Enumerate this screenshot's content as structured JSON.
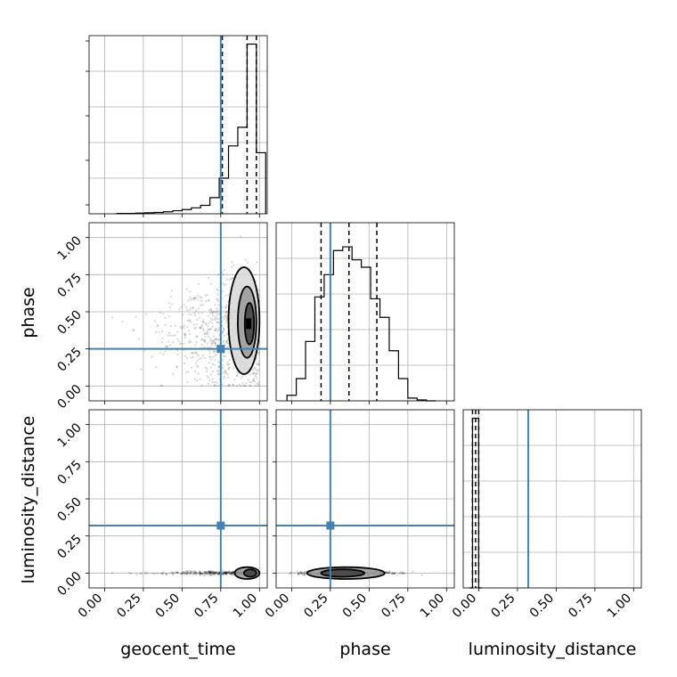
{
  "chart_data": {
    "type": "corner",
    "parameters": [
      "geocent_time",
      "phase",
      "luminosity_distance"
    ],
    "tick_labels": [
      "0.00",
      "0.25",
      "0.50",
      "0.75",
      "1.00"
    ],
    "injection": {
      "geocent_time": 0.75,
      "phase": 0.25,
      "luminosity_distance": 0.32
    },
    "truth_color": "#4682b4",
    "grid": true,
    "histograms": [
      {
        "parameter": "geocent_time",
        "xlim": [
          -0.1,
          1.05
        ],
        "bin_edges": [
          0.08,
          0.14,
          0.2,
          0.26,
          0.32,
          0.38,
          0.44,
          0.5,
          0.56,
          0.62,
          0.68,
          0.74,
          0.8,
          0.86,
          0.92,
          0.98,
          1.04
        ],
        "counts": [
          0.02,
          0.02,
          0.04,
          0.06,
          0.08,
          0.12,
          0.18,
          0.25,
          0.35,
          0.5,
          0.95,
          2.1,
          4.0,
          5.1,
          10.0,
          3.6
        ],
        "ylim": [
          0,
          10.5
        ],
        "quantiles": [
          0.76,
          0.92,
          0.98
        ]
      },
      {
        "parameter": "phase",
        "xlim": [
          -0.1,
          1.05
        ],
        "bin_edges": [
          -0.03,
          0.03,
          0.09,
          0.15,
          0.21,
          0.27,
          0.33,
          0.39,
          0.45,
          0.51,
          0.57,
          0.63,
          0.69,
          0.75,
          0.81,
          0.87,
          0.93
        ],
        "counts": [
          0.3,
          1.2,
          3.2,
          5.6,
          6.8,
          8.1,
          8.3,
          7.6,
          7.2,
          5.5,
          4.5,
          2.7,
          1.2,
          0.15,
          0.05,
          0.0
        ],
        "ylim": [
          0,
          9.6
        ],
        "quantiles": [
          0.19,
          0.37,
          0.55
        ]
      },
      {
        "parameter": "luminosity_distance",
        "xlim": [
          -0.1,
          1.05
        ],
        "bin_edges": [
          -0.06,
          -0.04,
          -0.02,
          0.0,
          0.02
        ],
        "counts": [
          0.0,
          10.0,
          10.0,
          0.0
        ],
        "ylim": [
          0,
          10.5
        ],
        "quantiles": [
          -0.04,
          -0.02,
          0.0
        ]
      }
    ],
    "scatter_panels": [
      {
        "x": "geocent_time",
        "y": "phase",
        "xlim": [
          -0.1,
          1.05
        ],
        "ylim": [
          -0.1,
          1.1
        ],
        "contour_levels": [
          {
            "cx": 0.935,
            "cy": 0.42,
            "rx": 0.03,
            "ry": 0.14
          },
          {
            "cx": 0.92,
            "cy": 0.43,
            "rx": 0.06,
            "ry": 0.24
          },
          {
            "cx": 0.9,
            "cy": 0.44,
            "rx": 0.1,
            "ry": 0.36
          }
        ]
      },
      {
        "x": "geocent_time",
        "y": "luminosity_distance",
        "xlim": [
          -0.1,
          1.05
        ],
        "ylim": [
          -0.1,
          1.1
        ],
        "contour_levels": [
          {
            "cx": 0.94,
            "cy": 0.0,
            "rx": 0.04,
            "ry": 0.025
          },
          {
            "cx": 0.92,
            "cy": 0.0,
            "rx": 0.08,
            "ry": 0.04
          }
        ]
      },
      {
        "x": "phase",
        "y": "luminosity_distance",
        "xlim": [
          -0.1,
          1.05
        ],
        "ylim": [
          -0.1,
          1.1
        ],
        "contour_levels": [
          {
            "cx": 0.33,
            "cy": 0.0,
            "rx": 0.14,
            "ry": 0.025
          },
          {
            "cx": 0.35,
            "cy": 0.0,
            "rx": 0.25,
            "ry": 0.04
          }
        ]
      }
    ]
  }
}
